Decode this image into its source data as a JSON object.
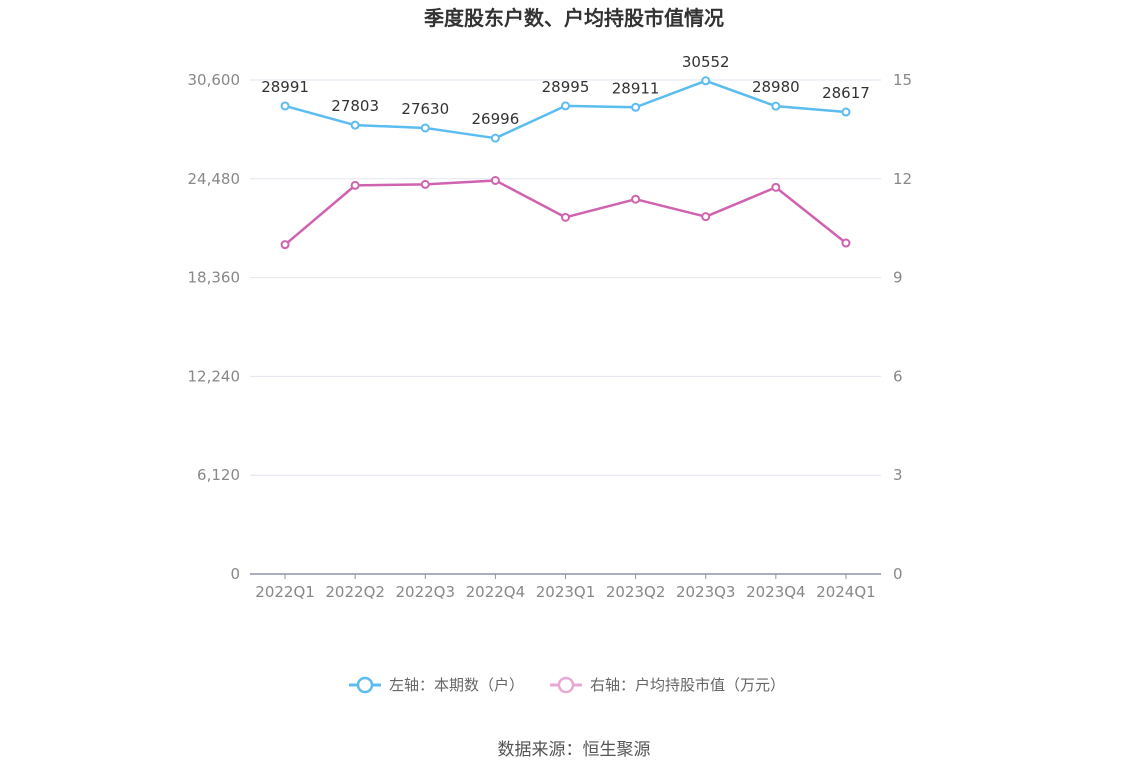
{
  "chart_data": {
    "type": "line",
    "title": "季度股东户数、户均持股市值情况",
    "categories": [
      "2022Q1",
      "2022Q2",
      "2022Q3",
      "2022Q4",
      "2023Q1",
      "2023Q2",
      "2023Q3",
      "2023Q4",
      "2024Q1"
    ],
    "left_axis": {
      "ticks": [
        "0",
        "6,120",
        "12,240",
        "18,360",
        "24,480",
        "30,600"
      ],
      "ylim": [
        0,
        30600
      ]
    },
    "right_axis": {
      "ticks": [
        "0",
        "3",
        "6",
        "9",
        "12",
        "15"
      ],
      "ylim": [
        0,
        15
      ]
    },
    "series": [
      {
        "name": "左轴：本期数（户）",
        "axis": "left",
        "color": "#5bbcf0",
        "values": [
          28991,
          27803,
          27630,
          26996,
          28995,
          28911,
          30552,
          28980,
          28617
        ],
        "labels": [
          "28991",
          "27803",
          "27630",
          "26996",
          "28995",
          "28911",
          "30552",
          "28980",
          "28617"
        ]
      },
      {
        "name": "右轴：户均持股市值（万元）",
        "axis": "right",
        "color": "#d063b0",
        "values": [
          10.0,
          11.8,
          11.83,
          11.95,
          10.83,
          11.38,
          10.85,
          11.74,
          10.05
        ]
      }
    ],
    "grid": true,
    "legend_position": "bottom-center"
  },
  "source": "数据来源：恒生聚源",
  "legend_marker_colors": {
    "left": "#5bbcf0",
    "right": "#e7a9d4"
  }
}
